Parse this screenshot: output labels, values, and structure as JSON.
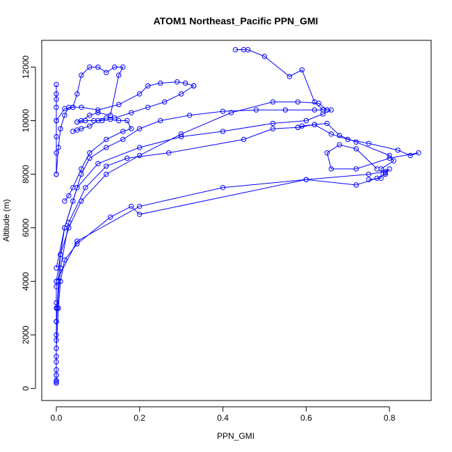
{
  "chart_data": {
    "type": "line",
    "title": "ATOM1 Northeast_Pacific PPN_GMI",
    "xlabel": "PPN_GMI",
    "ylabel": "Altitude (m)",
    "xlim": [
      -0.035,
      0.9
    ],
    "ylim": [
      -450,
      13000
    ],
    "x_ticks": [
      0,
      0.2,
      0.4,
      0.6,
      0.8
    ],
    "x_tick_labels": [
      "0.0",
      "0.2",
      "0.4",
      "0.6",
      "0.8"
    ],
    "y_ticks": [
      0,
      2000,
      4000,
      6000,
      8000,
      10000,
      12000
    ],
    "y_tick_labels": [
      "0",
      "2000",
      "4000",
      "6000",
      "8000",
      "10000",
      "12000"
    ],
    "color": "#0000ff",
    "marker": "open-circle",
    "grid": false,
    "legend": "none",
    "series": [
      {
        "x": [
          0.0,
          0.0,
          0.0,
          0.0,
          0.002,
          0.005,
          0.01,
          0.02,
          0.04,
          0.06,
          0.08,
          0.12,
          0.16,
          0.2,
          0.25,
          0.32,
          0.4,
          0.48,
          0.55,
          0.62,
          0.65
        ],
        "y": [
          200,
          500,
          1000,
          2000,
          3000,
          4000,
          5000,
          6000,
          7000,
          8000,
          8600,
          9000,
          9300,
          9700,
          10000,
          10200,
          10350,
          10400,
          10400,
          10400,
          10400
        ]
      },
      {
        "x": [
          0.65,
          0.63,
          0.58,
          0.52,
          0.42,
          0.3,
          0.2,
          0.12,
          0.06,
          0.03,
          0.01,
          0.0,
          0.0
        ],
        "y": [
          10400,
          10650,
          10700,
          10700,
          10300,
          9500,
          8700,
          8000,
          7000,
          6000,
          5000,
          4000,
          3000
        ]
      },
      {
        "x": [
          0.0,
          0.0,
          0.005,
          0.01,
          0.02,
          0.05,
          0.13,
          0.18,
          0.2,
          0.6,
          0.75,
          0.79,
          0.8,
          0.79
        ],
        "y": [
          300,
          1500,
          3000,
          4000,
          4800,
          5400,
          6400,
          6800,
          6500,
          7800,
          8000,
          8100,
          8200,
          8050
        ]
      },
      {
        "x": [
          0.79,
          0.77,
          0.72,
          0.6,
          0.4,
          0.2,
          0.05,
          0.0
        ],
        "y": [
          8000,
          7850,
          7600,
          7800,
          7500,
          6800,
          5500,
          4000
        ]
      },
      {
        "x": [
          0.0,
          0.0,
          0.01,
          0.03,
          0.07,
          0.12,
          0.17,
          0.27,
          0.45,
          0.52,
          0.58,
          0.62,
          0.65,
          0.68,
          0.72,
          0.8,
          0.81,
          0.78,
          0.78,
          0.75
        ],
        "y": [
          500,
          2500,
          4500,
          6200,
          7500,
          8300,
          8600,
          8800,
          9300,
          9700,
          9750,
          9850,
          9900,
          9450,
          9200,
          8700,
          8500,
          8200,
          7850,
          7800
        ]
      },
      {
        "x": [
          0.58,
          0.59,
          0.62,
          0.66,
          0.7,
          0.75,
          0.82,
          0.85,
          0.87,
          0.8,
          0.72,
          0.66,
          0.65,
          0.68,
          0.72,
          0.77
        ],
        "y": [
          9750,
          9800,
          9850,
          9500,
          9300,
          9150,
          8900,
          8700,
          8800,
          8600,
          8200,
          8200,
          8800,
          9100,
          8950,
          8200
        ]
      },
      {
        "x": [
          0.43,
          0.45,
          0.46,
          0.5,
          0.56,
          0.59,
          0.62,
          0.64,
          0.66,
          0.64,
          0.6,
          0.52,
          0.4,
          0.3,
          0.2,
          0.1,
          0.05,
          0.02,
          0.0
        ],
        "y": [
          12650,
          12650,
          12650,
          12400,
          11650,
          11900,
          10700,
          10400,
          10400,
          10250,
          10000,
          9900,
          9600,
          9400,
          9000,
          8400,
          7500,
          6000,
          4500
        ]
      },
      {
        "x": [
          0.0,
          0.0,
          0.0,
          0.0,
          0.0,
          0.0,
          0.0,
          0.0
        ],
        "y": [
          11350,
          11000,
          10800,
          10500,
          10000,
          9400,
          8800,
          8000
        ]
      },
      {
        "x": [
          0.0,
          0.005,
          0.01,
          0.02,
          0.03,
          0.04,
          0.05,
          0.06,
          0.08,
          0.1,
          0.12,
          0.14,
          0.16,
          0.15,
          0.13,
          0.1,
          0.08,
          0.06,
          0.05
        ],
        "y": [
          8000,
          9000,
          9700,
          10200,
          10500,
          10500,
          11000,
          11700,
          12000,
          12000,
          11800,
          12000,
          12000,
          11700,
          10200,
          10300,
          10200,
          10000,
          9950
        ]
      },
      {
        "x": [
          0.05,
          0.07,
          0.09,
          0.11,
          0.13,
          0.15,
          0.17,
          0.18,
          0.16,
          0.12,
          0.08,
          0.06,
          0.04,
          0.03,
          0.02
        ],
        "y": [
          9950,
          10000,
          10000,
          10000,
          10050,
          10000,
          10000,
          9700,
          9600,
          9300,
          8800,
          8200,
          7500,
          7200,
          7000
        ]
      },
      {
        "x": [
          0.04,
          0.05,
          0.06,
          0.08,
          0.1,
          0.12,
          0.14,
          0.18,
          0.22,
          0.26,
          0.3,
          0.33
        ],
        "y": [
          9600,
          9650,
          9700,
          9800,
          10000,
          10100,
          10100,
          10300,
          10500,
          10700,
          11000,
          11300
        ]
      },
      {
        "x": [
          0.33,
          0.31,
          0.29,
          0.25,
          0.22,
          0.2,
          0.15,
          0.1,
          0.06,
          0.04,
          0.02,
          0.0
        ],
        "y": [
          11300,
          11400,
          11450,
          11400,
          11300,
          11000,
          10600,
          10400,
          10500,
          10500,
          10450,
          10000
        ]
      },
      {
        "x": [
          0.0,
          0.0,
          0.0,
          0.0,
          0.0,
          0.0,
          0.0
        ],
        "y": [
          250,
          700,
          1200,
          1800,
          2500,
          3200,
          3800
        ]
      }
    ]
  }
}
